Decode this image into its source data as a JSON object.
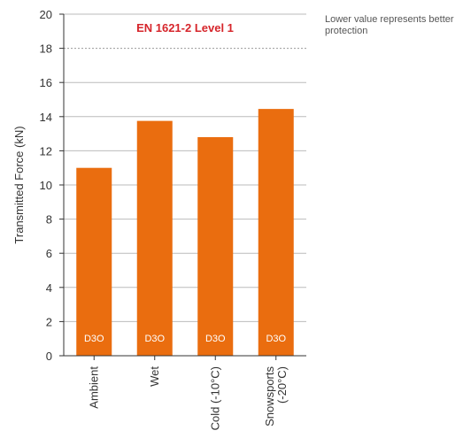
{
  "chart_data": {
    "type": "bar",
    "title": "EN 1621-2 Level 1",
    "ylabel": "Transmitted Force (kN)",
    "xlabel": "",
    "categories": [
      "Ambient",
      "Wet",
      "Cold (-10°C)",
      "Snowsports\n(-20°C)"
    ],
    "values": [
      11.0,
      13.75,
      12.8,
      14.45
    ],
    "bar_label": "D3O",
    "ylim": [
      0,
      20
    ],
    "yticks": [
      0,
      2,
      4,
      6,
      8,
      10,
      12,
      14,
      16,
      18,
      20
    ],
    "threshold": 18,
    "grid": true,
    "annotation": "Lower value represents better protection",
    "colors": {
      "bar": "#ea6d0f",
      "title": "#d6252b",
      "threshold": "#999999",
      "grid": "#bbbbbb",
      "axis": "#333333"
    }
  }
}
